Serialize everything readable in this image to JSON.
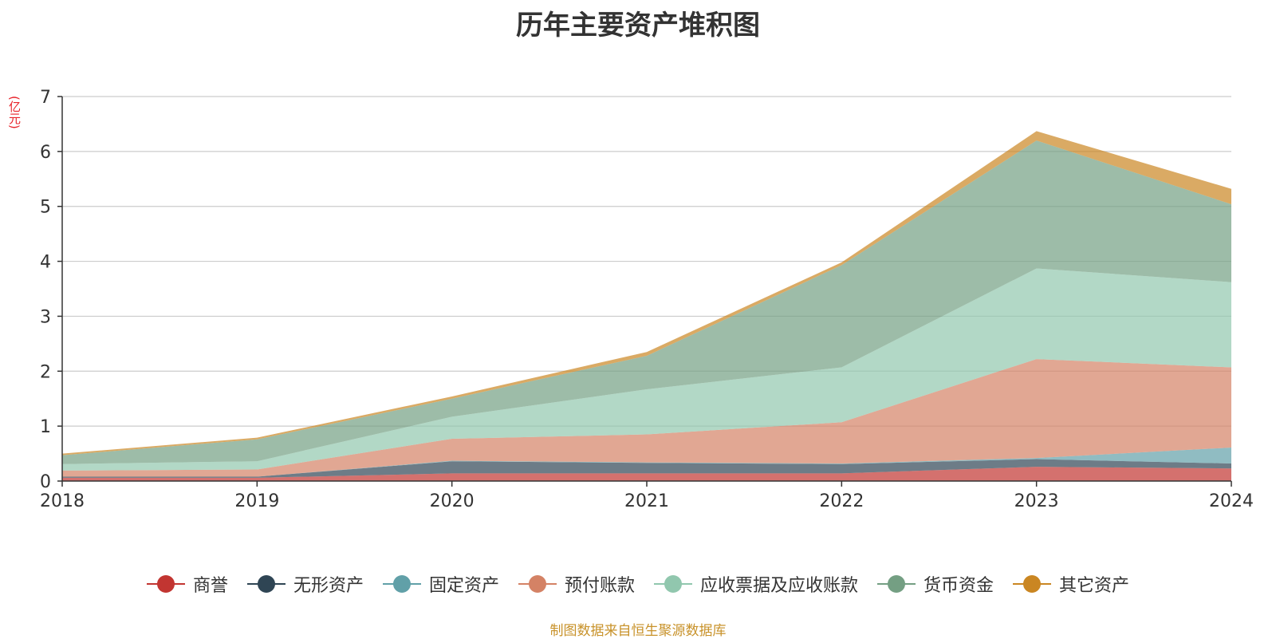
{
  "chart_data": {
    "type": "area",
    "stacked": true,
    "title": "历年主要资产堆积图",
    "unit_label": "(亿元)",
    "x": [
      "2018",
      "2019",
      "2020",
      "2021",
      "2022",
      "2023",
      "2024"
    ],
    "ylim": [
      0,
      7
    ],
    "yticks": [
      "0",
      "1",
      "2",
      "3",
      "4",
      "5",
      "6",
      "7"
    ],
    "grid": true,
    "legend_position": "bottom",
    "series": [
      {
        "name": "商誉",
        "color": "#c23531",
        "values": [
          0.06,
          0.06,
          0.14,
          0.14,
          0.14,
          0.26,
          0.23
        ]
      },
      {
        "name": "无形资产",
        "color": "#2f4554",
        "values": [
          0.02,
          0.02,
          0.22,
          0.19,
          0.17,
          0.14,
          0.09
        ]
      },
      {
        "name": "固定资产",
        "color": "#61a0a8",
        "values": [
          0.0,
          0.0,
          0.01,
          0.01,
          0.01,
          0.02,
          0.29
        ]
      },
      {
        "name": "预付账款",
        "color": "#d48265",
        "values": [
          0.11,
          0.13,
          0.4,
          0.51,
          0.75,
          1.8,
          1.46
        ]
      },
      {
        "name": "应收票据及应收账款",
        "color": "#91c7ae",
        "values": [
          0.12,
          0.15,
          0.4,
          0.82,
          1.0,
          1.65,
          1.55
        ]
      },
      {
        "name": "货币资金",
        "color": "#749f83",
        "values": [
          0.16,
          0.4,
          0.33,
          0.61,
          1.86,
          2.33,
          1.42
        ]
      },
      {
        "name": "其它资产",
        "color": "#ca8622",
        "values": [
          0.03,
          0.03,
          0.04,
          0.07,
          0.05,
          0.17,
          0.28
        ]
      }
    ]
  },
  "source_note": "制图数据来自恒生聚源数据库"
}
